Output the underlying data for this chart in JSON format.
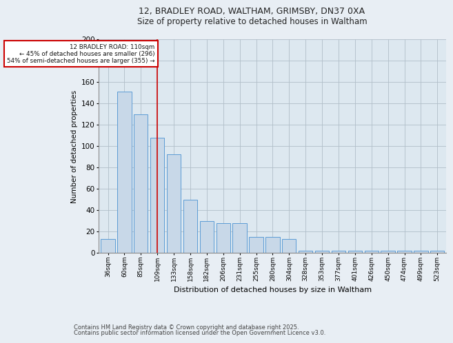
{
  "title1": "12, BRADLEY ROAD, WALTHAM, GRIMSBY, DN37 0XA",
  "title2": "Size of property relative to detached houses in Waltham",
  "xlabel": "Distribution of detached houses by size in Waltham",
  "ylabel": "Number of detached properties",
  "categories": [
    "36sqm",
    "60sqm",
    "85sqm",
    "109sqm",
    "133sqm",
    "158sqm",
    "182sqm",
    "206sqm",
    "231sqm",
    "255sqm",
    "280sqm",
    "304sqm",
    "328sqm",
    "353sqm",
    "377sqm",
    "401sqm",
    "426sqm",
    "450sqm",
    "474sqm",
    "499sqm",
    "523sqm"
  ],
  "values": [
    13,
    151,
    130,
    108,
    92,
    50,
    30,
    28,
    28,
    15,
    15,
    13,
    2,
    2,
    2,
    2,
    2,
    2,
    2,
    2,
    2
  ],
  "bar_color": "#c8d8e8",
  "bar_edge_color": "#5b9bd5",
  "highlight_index": 3,
  "annotation_title": "12 BRADLEY ROAD: 110sqm",
  "annotation_line1": "← 45% of detached houses are smaller (296)",
  "annotation_line2": "54% of semi-detached houses are larger (355) →",
  "vline_color": "#cc0000",
  "annotation_box_color": "#cc0000",
  "background_color": "#dde8f0",
  "grid_color": "#b0bec8",
  "footer1": "Contains HM Land Registry data © Crown copyright and database right 2025.",
  "footer2": "Contains public sector information licensed under the Open Government Licence v3.0.",
  "ylim": [
    0,
    200
  ],
  "yticks": [
    0,
    20,
    40,
    60,
    80,
    100,
    120,
    140,
    160,
    180,
    200
  ],
  "fig_bg": "#e8eef4"
}
